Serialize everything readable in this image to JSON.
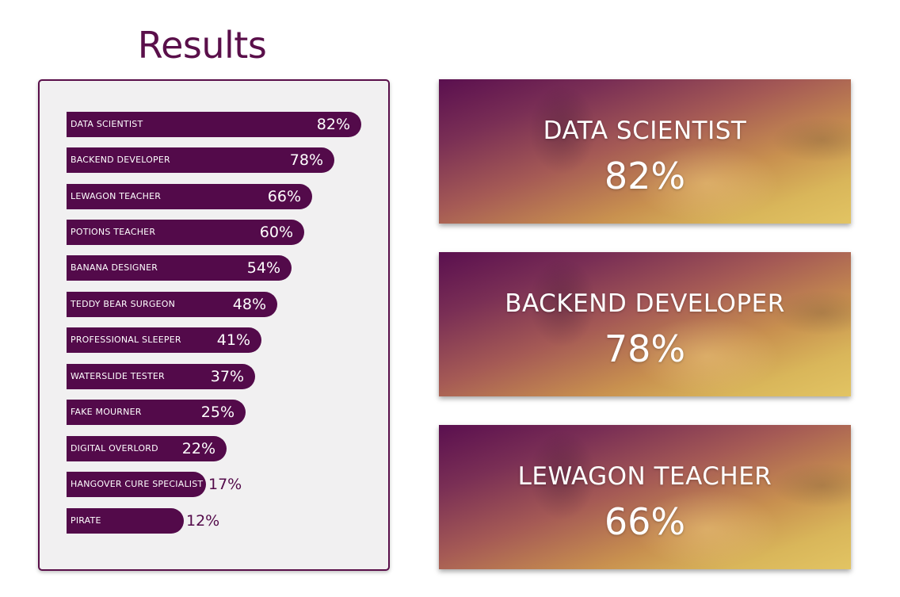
{
  "title": "Results",
  "bars": [
    {
      "label": "DATA SCIENTIST",
      "value": "82%",
      "percent": 82
    },
    {
      "label": "BACKEND DEVELOPER",
      "value": "78%",
      "percent": 78
    },
    {
      "label": "LEWAGON TEACHER",
      "value": "66%",
      "percent": 66
    },
    {
      "label": "POTIONS TEACHER",
      "value": "60%",
      "percent": 60
    },
    {
      "label": "BANANA DESIGNER",
      "value": "54%",
      "percent": 54
    },
    {
      "label": "TEDDY BEAR SURGEON",
      "value": "48%",
      "percent": 48
    },
    {
      "label": "PROFESSIONAL SLEEPER",
      "value": "41%",
      "percent": 41
    },
    {
      "label": "WATERSLIDE TESTER",
      "value": "37%",
      "percent": 37
    },
    {
      "label": "FAKE MOURNER",
      "value": "25%",
      "percent": 25
    },
    {
      "label": "DIGITAL OVERLORD",
      "value": "22%",
      "percent": 22
    },
    {
      "label": "HANGOVER CURE SPECIALIST",
      "value": "17%",
      "percent": 17
    },
    {
      "label": "PIRATE",
      "value": "12%",
      "percent": 12
    }
  ],
  "top_cards": [
    {
      "title": "DATA SCIENTIST",
      "value": "82%"
    },
    {
      "title": "BACKEND DEVELOPER",
      "value": "78%"
    },
    {
      "title": "LEWAGON TEACHER",
      "value": "66%"
    }
  ],
  "colors": {
    "brand": "#530a4a",
    "panel_background": "#f1f0f1",
    "card_gradient_start": "#5a0f4f",
    "card_gradient_end": "#e2c463"
  }
}
